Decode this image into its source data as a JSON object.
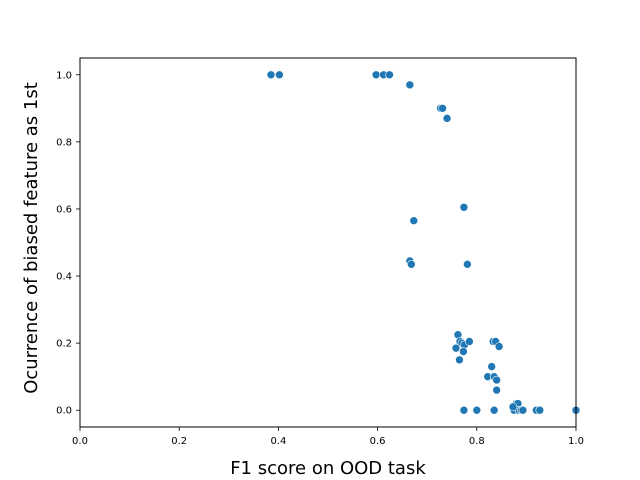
{
  "chart_data": {
    "type": "scatter",
    "title": "",
    "xlabel": "F1 score on OOD task",
    "ylabel": "Ocurrence of biased feature as 1st",
    "xlim": [
      0.0,
      1.0
    ],
    "ylim": [
      -0.05,
      1.05
    ],
    "xticks": [
      "0.0",
      "0.2",
      "0.4",
      "0.6",
      "0.8",
      "1.0"
    ],
    "yticks": [
      "0.0",
      "0.2",
      "0.4",
      "0.6",
      "0.8",
      "1.0"
    ],
    "grid": false,
    "legend": "none",
    "marker_color": "#1f77b4",
    "series": [
      {
        "x": [
          0.385,
          0.402,
          0.597,
          0.612,
          0.624,
          0.665,
          0.727,
          0.731,
          0.74,
          0.774,
          0.673,
          0.665,
          0.668,
          0.781,
          0.762,
          0.766,
          0.77,
          0.775,
          0.785,
          0.758,
          0.773,
          0.765,
          0.833,
          0.838,
          0.845,
          0.83,
          0.822,
          0.835,
          0.84,
          0.84,
          0.774,
          0.8,
          0.835,
          0.875,
          0.88,
          0.883,
          0.885,
          0.89,
          0.893,
          0.873,
          0.92,
          0.927,
          1.0
        ],
        "y": [
          1.0,
          1.0,
          1.0,
          1.0,
          1.0,
          0.97,
          0.9,
          0.9,
          0.87,
          0.605,
          0.565,
          0.445,
          0.435,
          0.435,
          0.225,
          0.205,
          0.2,
          0.195,
          0.205,
          0.185,
          0.175,
          0.15,
          0.205,
          0.205,
          0.19,
          0.13,
          0.1,
          0.1,
          0.09,
          0.06,
          0.0,
          0.0,
          0.0,
          0.0,
          0.02,
          0.02,
          0.0,
          0.0,
          0.0,
          0.01,
          0.0,
          0.0,
          0.0
        ]
      }
    ]
  }
}
